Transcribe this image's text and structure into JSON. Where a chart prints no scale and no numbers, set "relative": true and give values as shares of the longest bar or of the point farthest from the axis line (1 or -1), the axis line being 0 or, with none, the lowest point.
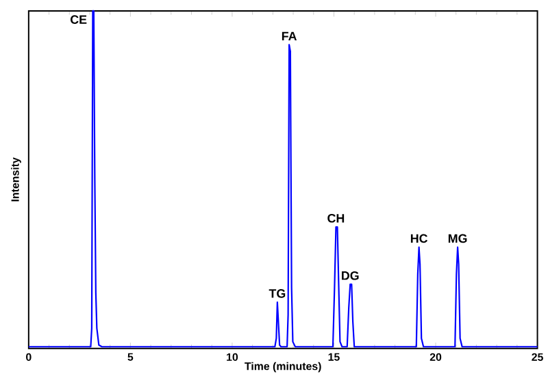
{
  "chart_data": {
    "type": "line",
    "xlabel": "Time (minutes)",
    "ylabel": "Intensity",
    "relative": true,
    "xlim": [
      0,
      25
    ],
    "xticks": [
      0,
      5,
      10,
      15,
      20,
      25
    ],
    "color": "#0000ff",
    "grid": false,
    "marker": "none",
    "line_style": "solid",
    "x": [
      0,
      3.05,
      3.1,
      3.15,
      3.2,
      3.25,
      3.3,
      3.35,
      3.45,
      3.6,
      12.1,
      12.17,
      12.22,
      12.27,
      12.33,
      12.4,
      12.7,
      12.75,
      12.8,
      12.86,
      12.92,
      12.98,
      13.1,
      14.95,
      15.03,
      15.1,
      15.17,
      15.23,
      15.3,
      15.4,
      15.65,
      15.73,
      15.8,
      15.87,
      15.93,
      16.0,
      19.05,
      19.12,
      19.18,
      19.23,
      19.3,
      19.4,
      20.95,
      21.02,
      21.08,
      21.13,
      21.2,
      21.3,
      25
    ],
    "values": [
      0.005,
      0.005,
      0.06,
      1,
      1,
      0.5,
      0.165,
      0.06,
      0.01,
      0.005,
      0.005,
      0.03,
      0.137,
      0.08,
      0.01,
      0.005,
      0.005,
      0.1,
      0.9,
      0.88,
      0.18,
      0.02,
      0.005,
      0.005,
      0.18,
      0.36,
      0.36,
      0.2,
      0.02,
      0.005,
      0.005,
      0.12,
      0.19,
      0.19,
      0.08,
      0.005,
      0.005,
      0.22,
      0.3,
      0.25,
      0.03,
      0.005,
      0.005,
      0.22,
      0.3,
      0.25,
      0.03,
      0.005,
      0.005
    ],
    "annotations": [
      {
        "text": "CE",
        "x": 3.15,
        "y": 1
      },
      {
        "text": "TG",
        "x": 12.22,
        "y": 0.137
      },
      {
        "text": "FA",
        "x": 12.8,
        "y": 0.9
      },
      {
        "text": "CH",
        "x": 15.1,
        "y": 0.36
      },
      {
        "text": "DG",
        "x": 15.8,
        "y": 0.19
      },
      {
        "text": "HC",
        "x": 19.18,
        "y": 0.3
      },
      {
        "text": "MG",
        "x": 21.08,
        "y": 0.3
      }
    ]
  }
}
